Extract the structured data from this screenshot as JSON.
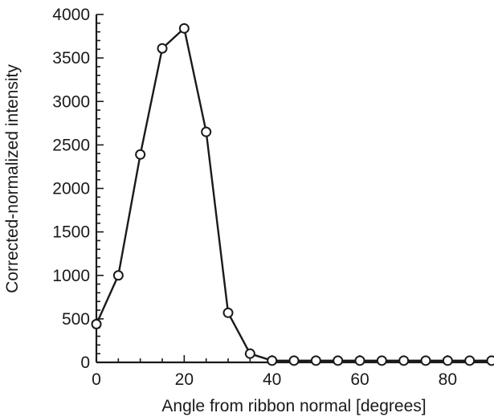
{
  "chart_data": {
    "type": "line",
    "title": "",
    "xlabel": "Angle from ribbon normal [degrees]",
    "ylabel": "Corrected-normalized intensity",
    "xlim": [
      0,
      90
    ],
    "ylim": [
      0,
      4000
    ],
    "x_ticks": [
      0,
      20,
      40,
      60,
      80
    ],
    "y_ticks": [
      0,
      500,
      1000,
      1500,
      2000,
      2500,
      3000,
      3500,
      4000
    ],
    "grid": false,
    "marker": "open-circle",
    "line_color": "#1a1a1a",
    "series": [
      {
        "x": [
          0,
          5,
          10,
          15,
          20,
          25,
          30,
          35,
          40,
          45,
          50,
          55,
          60,
          65,
          70,
          75,
          80,
          85,
          90
        ],
        "y": [
          440,
          1000,
          2390,
          3610,
          3840,
          2650,
          570,
          100,
          20,
          20,
          20,
          20,
          20,
          20,
          20,
          20,
          20,
          20,
          20
        ]
      }
    ]
  }
}
